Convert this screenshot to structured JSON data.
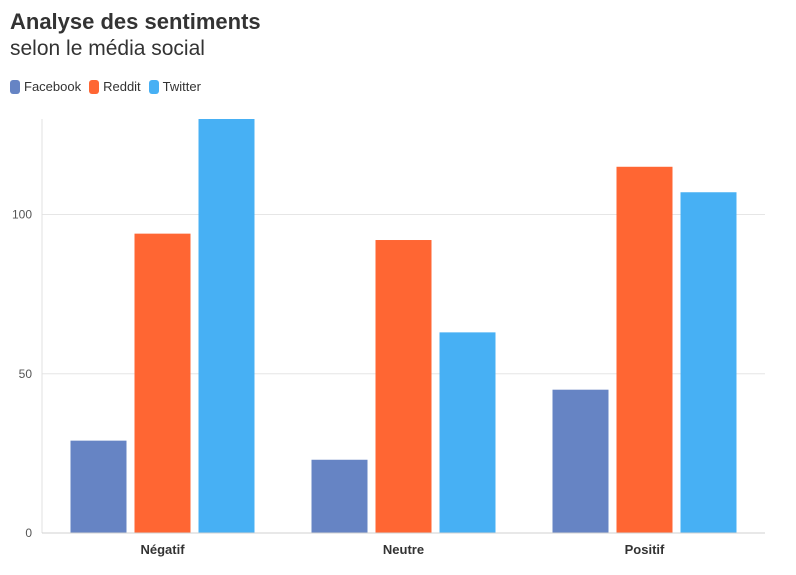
{
  "chart_data": {
    "type": "bar",
    "title": "Analyse des sentiments",
    "subtitle": "selon le média social",
    "categories": [
      "Négatif",
      "Neutre",
      "Positif"
    ],
    "series": [
      {
        "name": "Facebook",
        "color": "#6684c4",
        "values": [
          29,
          23,
          45
        ]
      },
      {
        "name": "Reddit",
        "color": "#ff6633",
        "values": [
          94,
          92,
          115
        ]
      },
      {
        "name": "Twitter",
        "color": "#47b0f4",
        "values": [
          130,
          63,
          107
        ]
      }
    ],
    "y_ticks": [
      0,
      50,
      100
    ],
    "ylim": [
      0,
      130
    ],
    "legend_position": "top-left",
    "grid": true
  }
}
